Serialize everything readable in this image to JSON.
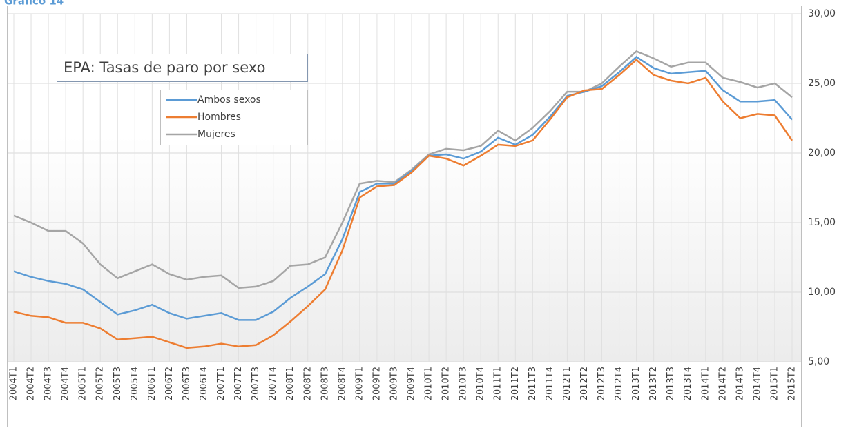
{
  "header": {
    "title": "Gráfico 14"
  },
  "chart_data": {
    "type": "line",
    "title": "EPA: Tasas de paro por sexo",
    "categories": [
      "2004T1",
      "2004T2",
      "2004T3",
      "2004T4",
      "2005T1",
      "2005T2",
      "2005T3",
      "2005T4",
      "2006T1",
      "2006T2",
      "2006T3",
      "2006T4",
      "2007T1",
      "2007T2",
      "2007T3",
      "2007T4",
      "2008T1",
      "2008T2",
      "2008T3",
      "2008T4",
      "2009T1",
      "2009T2",
      "2009T3",
      "2009T4",
      "2010T1",
      "2010T2",
      "2010T3",
      "2010T4",
      "2011T1",
      "2011T2",
      "2011T3",
      "2011T4",
      "2012T1",
      "2012T2",
      "2012T3",
      "2012T4",
      "2013T1",
      "2013T2",
      "2013T3",
      "2013T4",
      "2014T1",
      "2014T2",
      "2014T3",
      "2014T4",
      "2015T1",
      "2015T2"
    ],
    "series": [
      {
        "name": "Ambos sexos",
        "color": "#5b9bd5",
        "values": [
          11.5,
          11.1,
          10.8,
          10.6,
          10.2,
          9.3,
          8.4,
          8.7,
          9.1,
          8.5,
          8.1,
          8.3,
          8.5,
          8.0,
          8.0,
          8.6,
          9.6,
          10.4,
          11.3,
          13.8,
          17.2,
          17.8,
          17.8,
          18.7,
          19.8,
          19.9,
          19.6,
          20.1,
          21.1,
          20.6,
          21.3,
          22.6,
          24.1,
          24.4,
          24.8,
          25.8,
          26.9,
          26.1,
          25.7,
          25.8,
          25.9,
          24.5,
          23.7,
          23.7,
          23.8,
          22.4
        ]
      },
      {
        "name": "Hombres",
        "color": "#ed7d31",
        "values": [
          8.6,
          8.3,
          8.2,
          7.8,
          7.8,
          7.4,
          6.6,
          6.7,
          6.8,
          6.4,
          6.0,
          6.1,
          6.3,
          6.1,
          6.2,
          6.9,
          7.9,
          9.0,
          10.2,
          13.0,
          16.8,
          17.6,
          17.7,
          18.6,
          19.8,
          19.6,
          19.1,
          19.8,
          20.6,
          20.5,
          20.9,
          22.4,
          24.0,
          24.5,
          24.6,
          25.6,
          26.7,
          25.6,
          25.2,
          25.0,
          25.4,
          23.7,
          22.5,
          22.8,
          22.7,
          20.9
        ]
      },
      {
        "name": "Mujeres",
        "color": "#a5a5a5",
        "values": [
          15.5,
          15.0,
          14.4,
          14.4,
          13.5,
          12.0,
          11.0,
          11.5,
          12.0,
          11.3,
          10.9,
          11.1,
          11.2,
          10.3,
          10.4,
          10.8,
          11.9,
          12.0,
          12.5,
          15.0,
          17.8,
          18.0,
          17.9,
          18.8,
          19.9,
          20.3,
          20.2,
          20.5,
          21.6,
          20.9,
          21.8,
          23.0,
          24.4,
          24.4,
          25.0,
          26.2,
          27.3,
          26.8,
          26.2,
          26.5,
          26.5,
          25.4,
          25.1,
          24.7,
          25.0,
          24.0
        ]
      }
    ],
    "ylim": [
      5,
      30
    ],
    "yticks": [
      {
        "value": 5,
        "label": "5,00"
      },
      {
        "value": 10,
        "label": "10,00"
      },
      {
        "value": 15,
        "label": "15,00"
      },
      {
        "value": 20,
        "label": "20,00"
      },
      {
        "value": 25,
        "label": "25,00"
      },
      {
        "value": 30,
        "label": "30,00"
      }
    ],
    "grid": true,
    "legend": "upper left"
  }
}
